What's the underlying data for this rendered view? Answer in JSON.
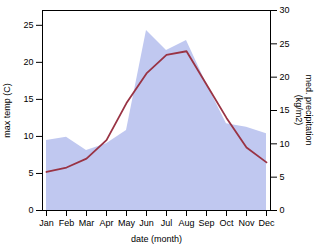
{
  "chart_data": {
    "type": "line",
    "categories": [
      "Jan",
      "Feb",
      "Mar",
      "Apr",
      "May",
      "Jun",
      "Jul",
      "Aug",
      "Sep",
      "Oct",
      "Nov",
      "Dec"
    ],
    "xlabel": "date (month)",
    "ylabel": "max temp (C)",
    "y2label": "med. precipitation\n(kg/m2)",
    "series": [
      {
        "type": "area",
        "axis": "y2",
        "color": "#c0c8f0",
        "values": [
          10.5,
          11.0,
          9.0,
          10.0,
          12.0,
          27.0,
          24.0,
          25.5,
          19.0,
          13.0,
          12.5,
          11.5
        ]
      },
      {
        "type": "line",
        "color": "#993344",
        "values": [
          5.2,
          5.8,
          7.0,
          9.5,
          14.5,
          18.5,
          21.0,
          21.5,
          17.0,
          12.5,
          8.5,
          6.5
        ]
      }
    ],
    "ylim": [
      0,
      27
    ],
    "yticks": [
      0,
      5,
      10,
      15,
      20,
      25
    ],
    "y2lim": [
      0,
      30
    ],
    "y2ticks": [
      0,
      5,
      10,
      15,
      20,
      25,
      30
    ],
    "grid": false
  }
}
